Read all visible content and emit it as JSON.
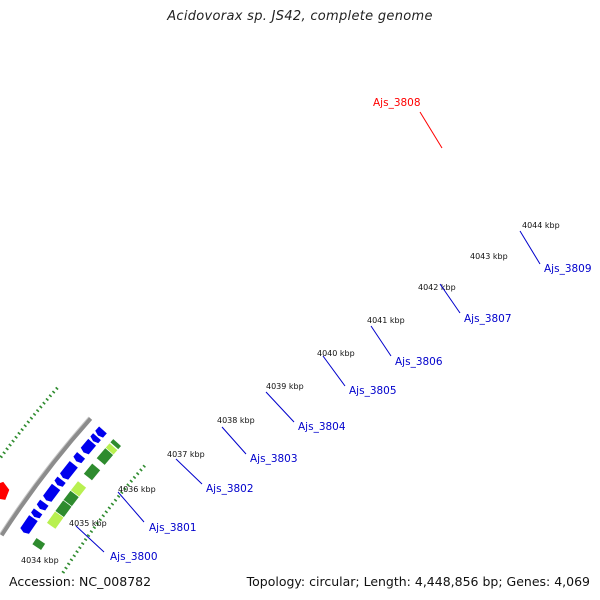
{
  "title": "Acidovorax sp. JS42, complete genome",
  "footer": {
    "accession": "Accession: NC_008782",
    "stats": "Topology: circular; Length: 4,448,856 bp; Genes: 4,069"
  },
  "kbp_ticks": [
    "4034 kbp",
    "4035 kbp",
    "4036 kbp",
    "4037 kbp",
    "4038 kbp",
    "4039 kbp",
    "4040 kbp",
    "4041 kbp",
    "4042 kbp",
    "4043 kbp",
    "4044 kbp"
  ],
  "gene_labels": [
    {
      "name": "Ajs_3800",
      "color": "#0000cc"
    },
    {
      "name": "Ajs_3801",
      "color": "#0000cc"
    },
    {
      "name": "Ajs_3802",
      "color": "#0000cc"
    },
    {
      "name": "Ajs_3803",
      "color": "#0000cc"
    },
    {
      "name": "Ajs_3804",
      "color": "#0000cc"
    },
    {
      "name": "Ajs_3805",
      "color": "#0000cc"
    },
    {
      "name": "Ajs_3806",
      "color": "#0000cc"
    },
    {
      "name": "Ajs_3807",
      "color": "#0000cc"
    },
    {
      "name": "Ajs_3808",
      "color": "#ff0000"
    },
    {
      "name": "Ajs_3809",
      "color": "#0000cc"
    }
  ],
  "colors": {
    "backbone": "#8c8c8c",
    "forward_cds": "#0000ee",
    "reverse_cds": "#2e8b2e",
    "reverse_cds_light": "#b8f050",
    "highlight_cds": "#ff0000",
    "tick": "#2e8b2e",
    "label_blue": "#0000cc",
    "label_red": "#ff0000"
  }
}
